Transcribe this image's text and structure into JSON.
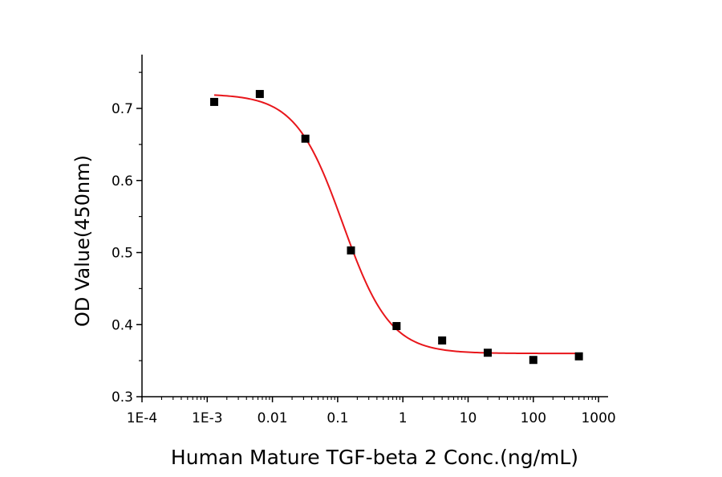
{
  "chart_data": {
    "type": "scatter",
    "title": "",
    "xlabel": "Human Mature TGF-beta 2 Conc.(ng/mL)",
    "ylabel": "OD Value(450nm)",
    "xscale": "log",
    "xlim": [
      0.0001,
      1500
    ],
    "ylim": [
      0.3,
      0.775
    ],
    "grid": false,
    "x_ticks": [
      0.0001,
      0.001,
      0.01,
      0.1,
      1,
      10,
      100,
      1000
    ],
    "x_tick_labels": [
      "1E-4",
      "1E-3",
      "0.01",
      "0.1",
      "1",
      "10",
      "100",
      "1000"
    ],
    "y_ticks": [
      0.3,
      0.4,
      0.5,
      0.6,
      0.7
    ],
    "y_tick_labels": [
      "0.3",
      "0.4",
      "0.5",
      "0.6",
      "0.7"
    ],
    "points": {
      "x": [
        0.00128,
        0.0064,
        0.032,
        0.16,
        0.8,
        4,
        20,
        100,
        500
      ],
      "y": [
        0.709,
        0.72,
        0.658,
        0.503,
        0.398,
        0.378,
        0.361,
        0.351,
        0.356
      ],
      "color": "#000000",
      "marker": "square"
    },
    "fit_curve": {
      "model": "4PL",
      "top": 0.72,
      "bottom": 0.36,
      "ec50": 0.12,
      "hill": 1.2,
      "x_range": [
        0.00128,
        500
      ],
      "color": "#e8161b"
    }
  }
}
